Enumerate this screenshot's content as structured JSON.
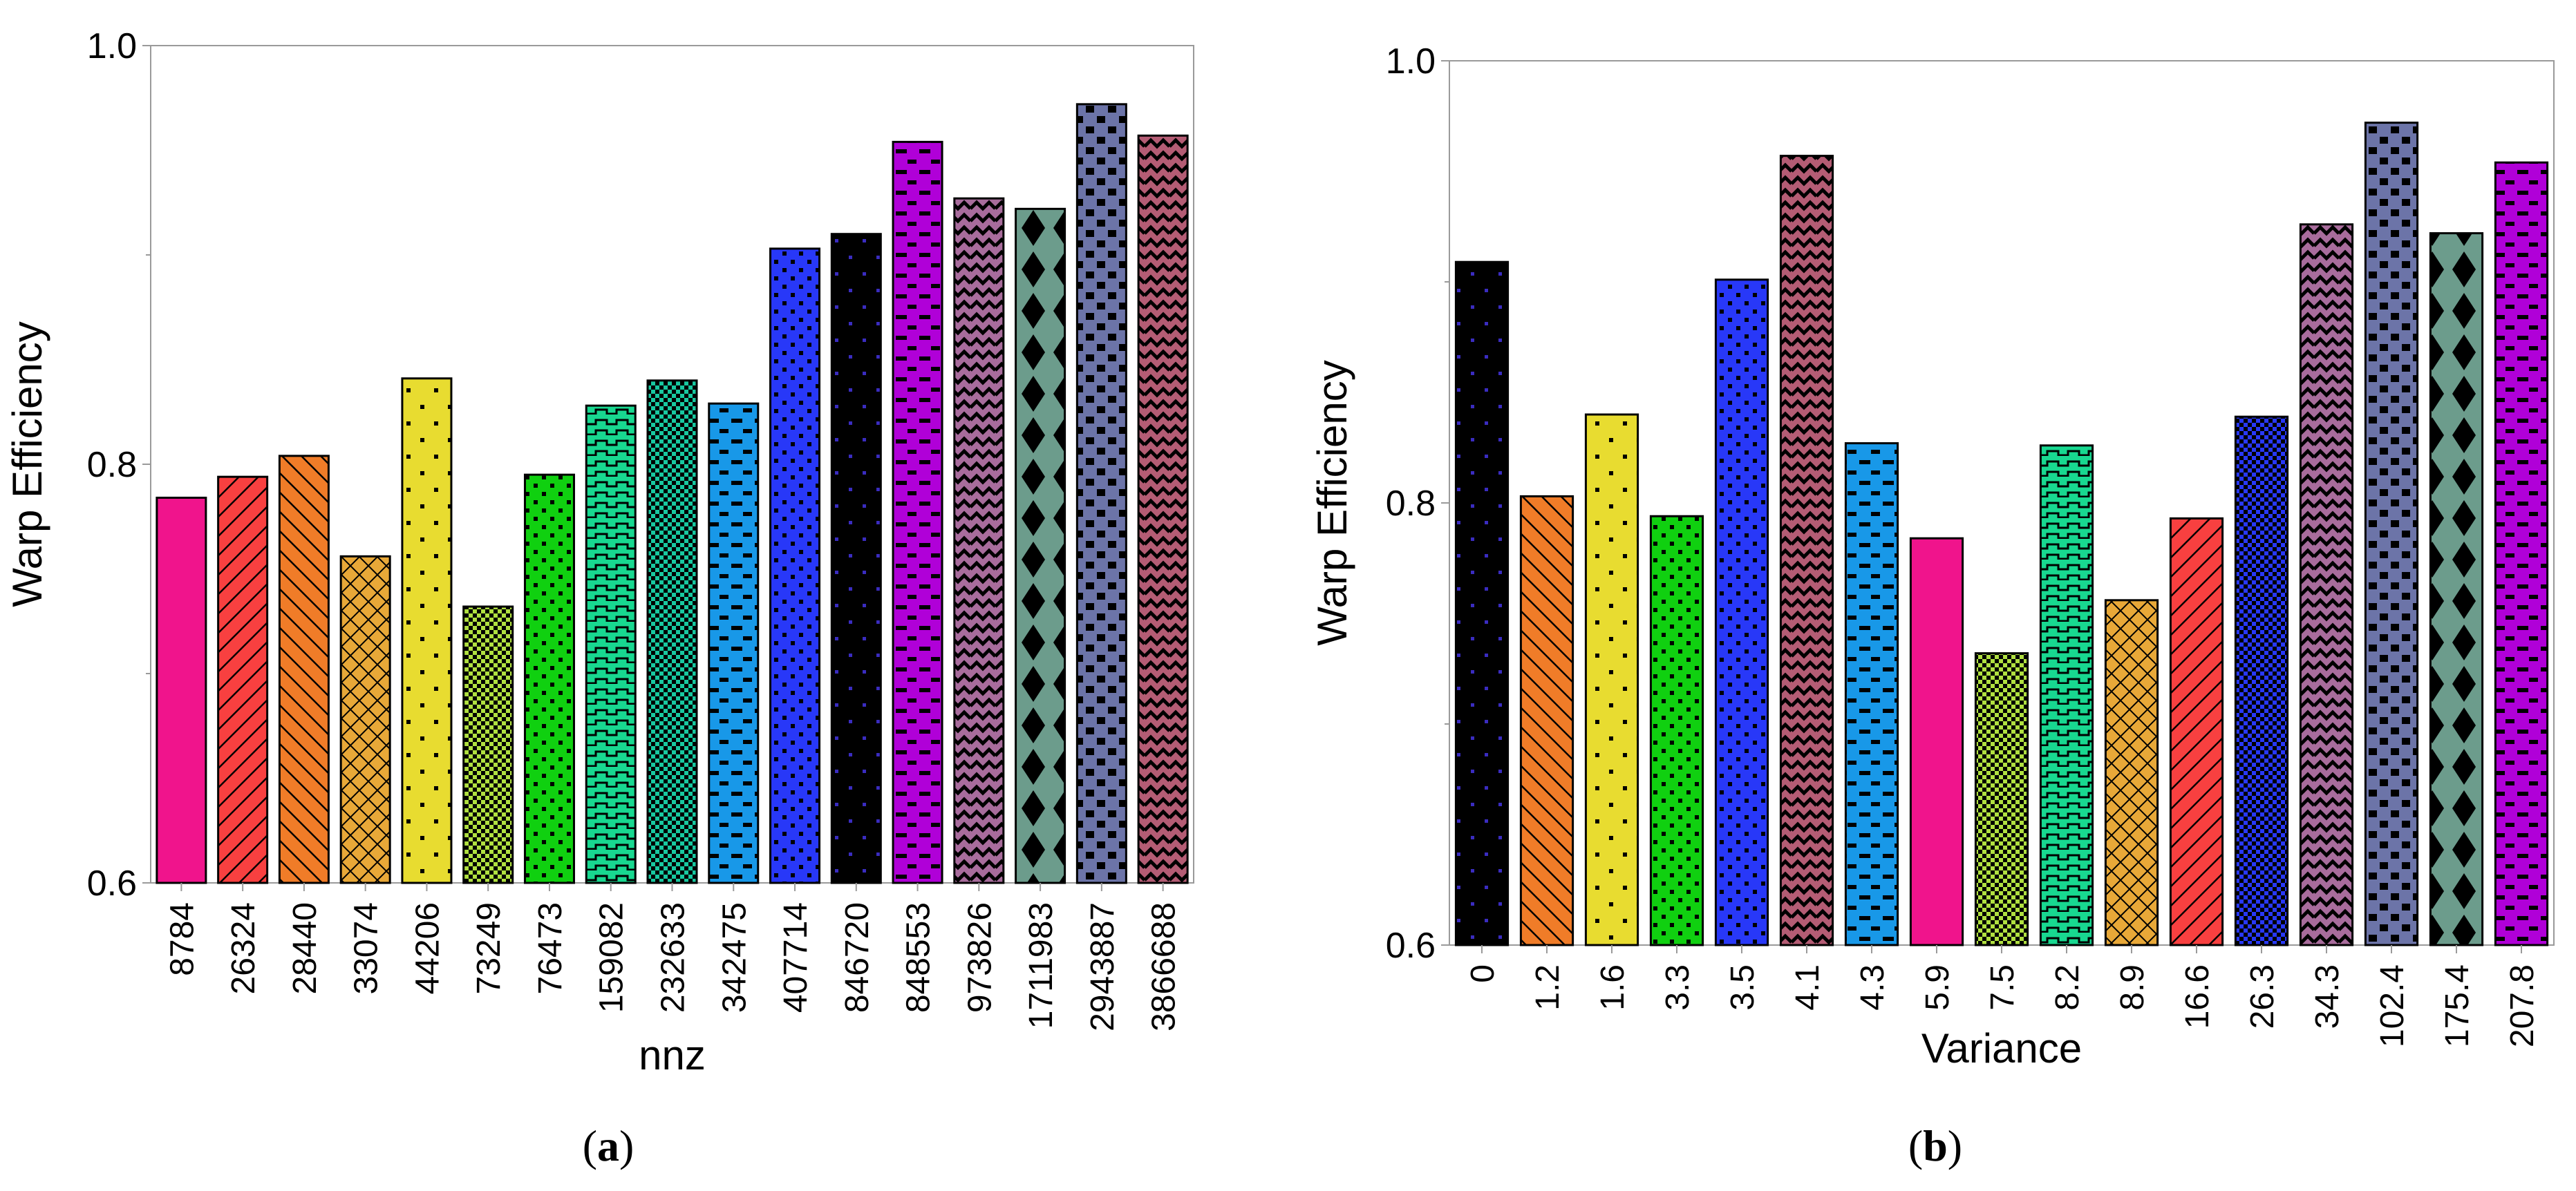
{
  "chart_data": [
    {
      "type": "bar",
      "caption": "(a)",
      "caption_letter": "a",
      "title": "",
      "xlabel": "nnz",
      "ylabel": "Warp Efficiency",
      "ylim": [
        0.6,
        1.0
      ],
      "yticks": [
        "0.6",
        "0.8",
        "1.0"
      ],
      "categories": [
        "8784",
        "26324",
        "28440",
        "33074",
        "44206",
        "73249",
        "76473",
        "159082",
        "232633",
        "342475",
        "407714",
        "846720",
        "848553",
        "973826",
        "1711983",
        "2943887",
        "3866688"
      ],
      "values": [
        0.784,
        0.794,
        0.804,
        0.756,
        0.841,
        0.732,
        0.795,
        0.828,
        0.84,
        0.829,
        0.903,
        0.91,
        0.954,
        0.927,
        0.922,
        0.972,
        0.957
      ],
      "colors": [
        "#f0148c",
        "#f84040",
        "#f07c28",
        "#e8a838",
        "#e8dc30",
        "#b0e040",
        "#10d010",
        "#18d890",
        "#18c8a0",
        "#1898e8",
        "#2838f8",
        "#000000",
        "#b000d8",
        "#a86c9c",
        "#6c9c8c",
        "#6c74a8",
        "#b45c74"
      ],
      "patterns": [
        "none",
        "diag",
        "diag2",
        "cross",
        "dots",
        "check",
        "dots2",
        "wave",
        "check",
        "dash",
        "dots2",
        "dots3",
        "dash",
        "zigzag",
        "diamond",
        "squares",
        "zigzag"
      ],
      "grid": false,
      "legend": "none"
    },
    {
      "type": "bar",
      "caption": "(b)",
      "caption_letter": "b",
      "title": "",
      "xlabel": "Variance",
      "ylabel": "Warp Efficiency",
      "ylim": [
        0.6,
        1.0
      ],
      "yticks": [
        "0.6",
        "0.8",
        "1.0"
      ],
      "categories": [
        "0",
        "1.2",
        "1.6",
        "3.3",
        "3.5",
        "4.1",
        "4.3",
        "5.9",
        "7.5",
        "8.2",
        "8.9",
        "16.6",
        "26.3",
        "34.3",
        "102.4",
        "175.4",
        "207.8"
      ],
      "values": [
        0.909,
        0.803,
        0.84,
        0.794,
        0.901,
        0.957,
        0.827,
        0.784,
        0.732,
        0.826,
        0.756,
        0.793,
        0.839,
        0.926,
        0.972,
        0.922,
        0.954
      ],
      "colors": [
        "#000000",
        "#f07c28",
        "#e8dc30",
        "#10d010",
        "#2838f8",
        "#b45c74",
        "#1898e8",
        "#f0148c",
        "#b0e040",
        "#18d890",
        "#e8a838",
        "#f84040",
        "#2838f8",
        "#a86c9c",
        "#6c74a8",
        "#6c9c8c",
        "#b000d8"
      ],
      "patterns": [
        "dots3",
        "diag2",
        "dots",
        "dots2",
        "dots2",
        "zigzag",
        "dash",
        "none",
        "check",
        "wave",
        "cross",
        "diag",
        "check",
        "zigzag",
        "squares",
        "diamond",
        "dash"
      ],
      "grid": false,
      "legend": "none"
    }
  ]
}
